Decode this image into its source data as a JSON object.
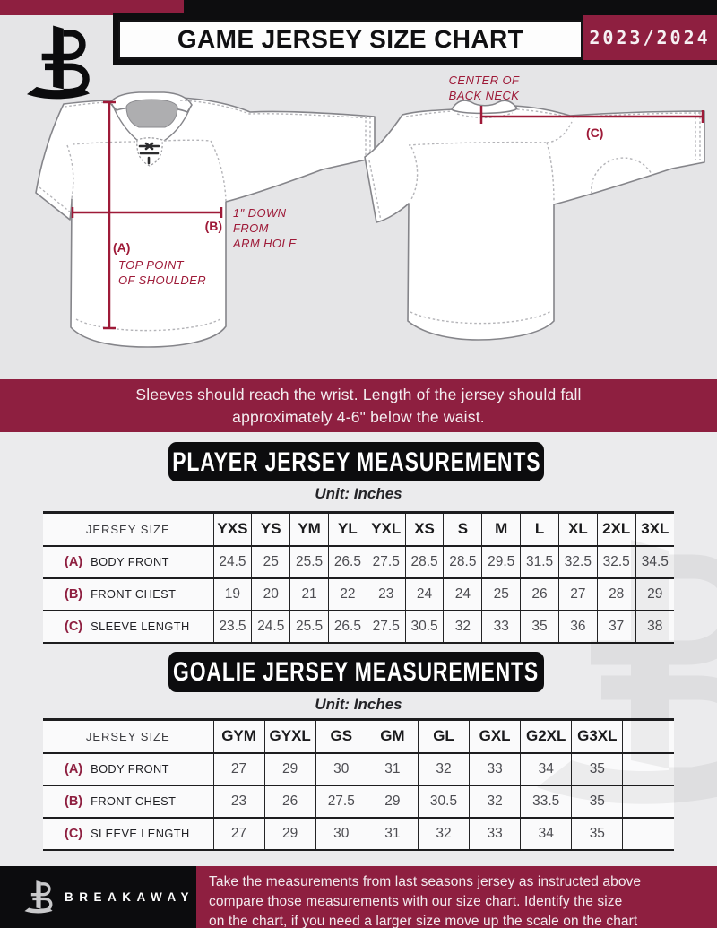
{
  "header": {
    "title": "GAME JERSEY SIZE CHART",
    "season": "2023/2024"
  },
  "icons": {
    "brand_logo": "breakaway-b-logo",
    "watermark": "breakaway-b-watermark"
  },
  "colors": {
    "maroon": "#8E1F40",
    "measurement_line": "#9E1A38",
    "black": "#0C0C0E",
    "bg_top": "#E5E5E7",
    "bg_bottom": "#EBEBED"
  },
  "diagram": {
    "front": {
      "a_label": "(A)",
      "a_note_lines": [
        "TOP POINT",
        "OF SHOULDER"
      ],
      "b_label": "(B)",
      "b_note_lines": [
        "1\" DOWN",
        "FROM",
        "ARM HOLE"
      ]
    },
    "back": {
      "c_label": "(C)",
      "neck_note_lines": [
        "CENTER OF",
        "BACK NECK"
      ]
    },
    "note_lines": [
      "Sleeves should reach the wrist. Length of the jersey should fall",
      "approximately 4-6\" below the waist."
    ]
  },
  "player_section": {
    "title": "PLAYER JERSEY MEASUREMENTS",
    "unit": "Unit: Inches",
    "table": {
      "label_col": "JERSEY SIZE",
      "sizes": [
        "YXS",
        "YS",
        "YM",
        "YL",
        "YXL",
        "XS",
        "S",
        "M",
        "L",
        "XL",
        "2XL",
        "3XL"
      ],
      "rows": [
        {
          "key": "(A)",
          "label": "BODY FRONT",
          "values": [
            "24.5",
            "25",
            "25.5",
            "26.5",
            "27.5",
            "28.5",
            "28.5",
            "29.5",
            "31.5",
            "32.5",
            "32.5",
            "34.5"
          ]
        },
        {
          "key": "(B)",
          "label": "FRONT CHEST",
          "values": [
            "19",
            "20",
            "21",
            "22",
            "23",
            "24",
            "24",
            "25",
            "26",
            "27",
            "28",
            "29"
          ]
        },
        {
          "key": "(C)",
          "label": "SLEEVE LENGTH",
          "values": [
            "23.5",
            "24.5",
            "25.5",
            "26.5",
            "27.5",
            "30.5",
            "32",
            "33",
            "35",
            "36",
            "37",
            "38"
          ]
        }
      ]
    }
  },
  "goalie_section": {
    "title": "GOALIE JERSEY MEASUREMENTS",
    "unit": "Unit: Inches",
    "table": {
      "label_col": "JERSEY SIZE",
      "sizes": [
        "GYM",
        "GYXL",
        "GS",
        "GM",
        "GL",
        "GXL",
        "G2XL",
        "G3XL",
        ""
      ],
      "rows": [
        {
          "key": "(A)",
          "label": "BODY FRONT",
          "values": [
            "27",
            "29",
            "30",
            "31",
            "32",
            "33",
            "34",
            "35",
            ""
          ]
        },
        {
          "key": "(B)",
          "label": "FRONT CHEST",
          "values": [
            "23",
            "26",
            "27.5",
            "29",
            "30.5",
            "32",
            "33.5",
            "35",
            ""
          ]
        },
        {
          "key": "(C)",
          "label": "SLEEVE LENGTH",
          "values": [
            "27",
            "29",
            "30",
            "31",
            "32",
            "33",
            "34",
            "35",
            ""
          ]
        }
      ]
    }
  },
  "footer": {
    "brand": "BREAKAWAY",
    "note_lines": [
      "Take the measurements from last seasons jersey as instructed above",
      "compare those measurements with our size chart. Identify the size",
      "on the chart, if you need a larger size move up the scale on the chart"
    ]
  }
}
